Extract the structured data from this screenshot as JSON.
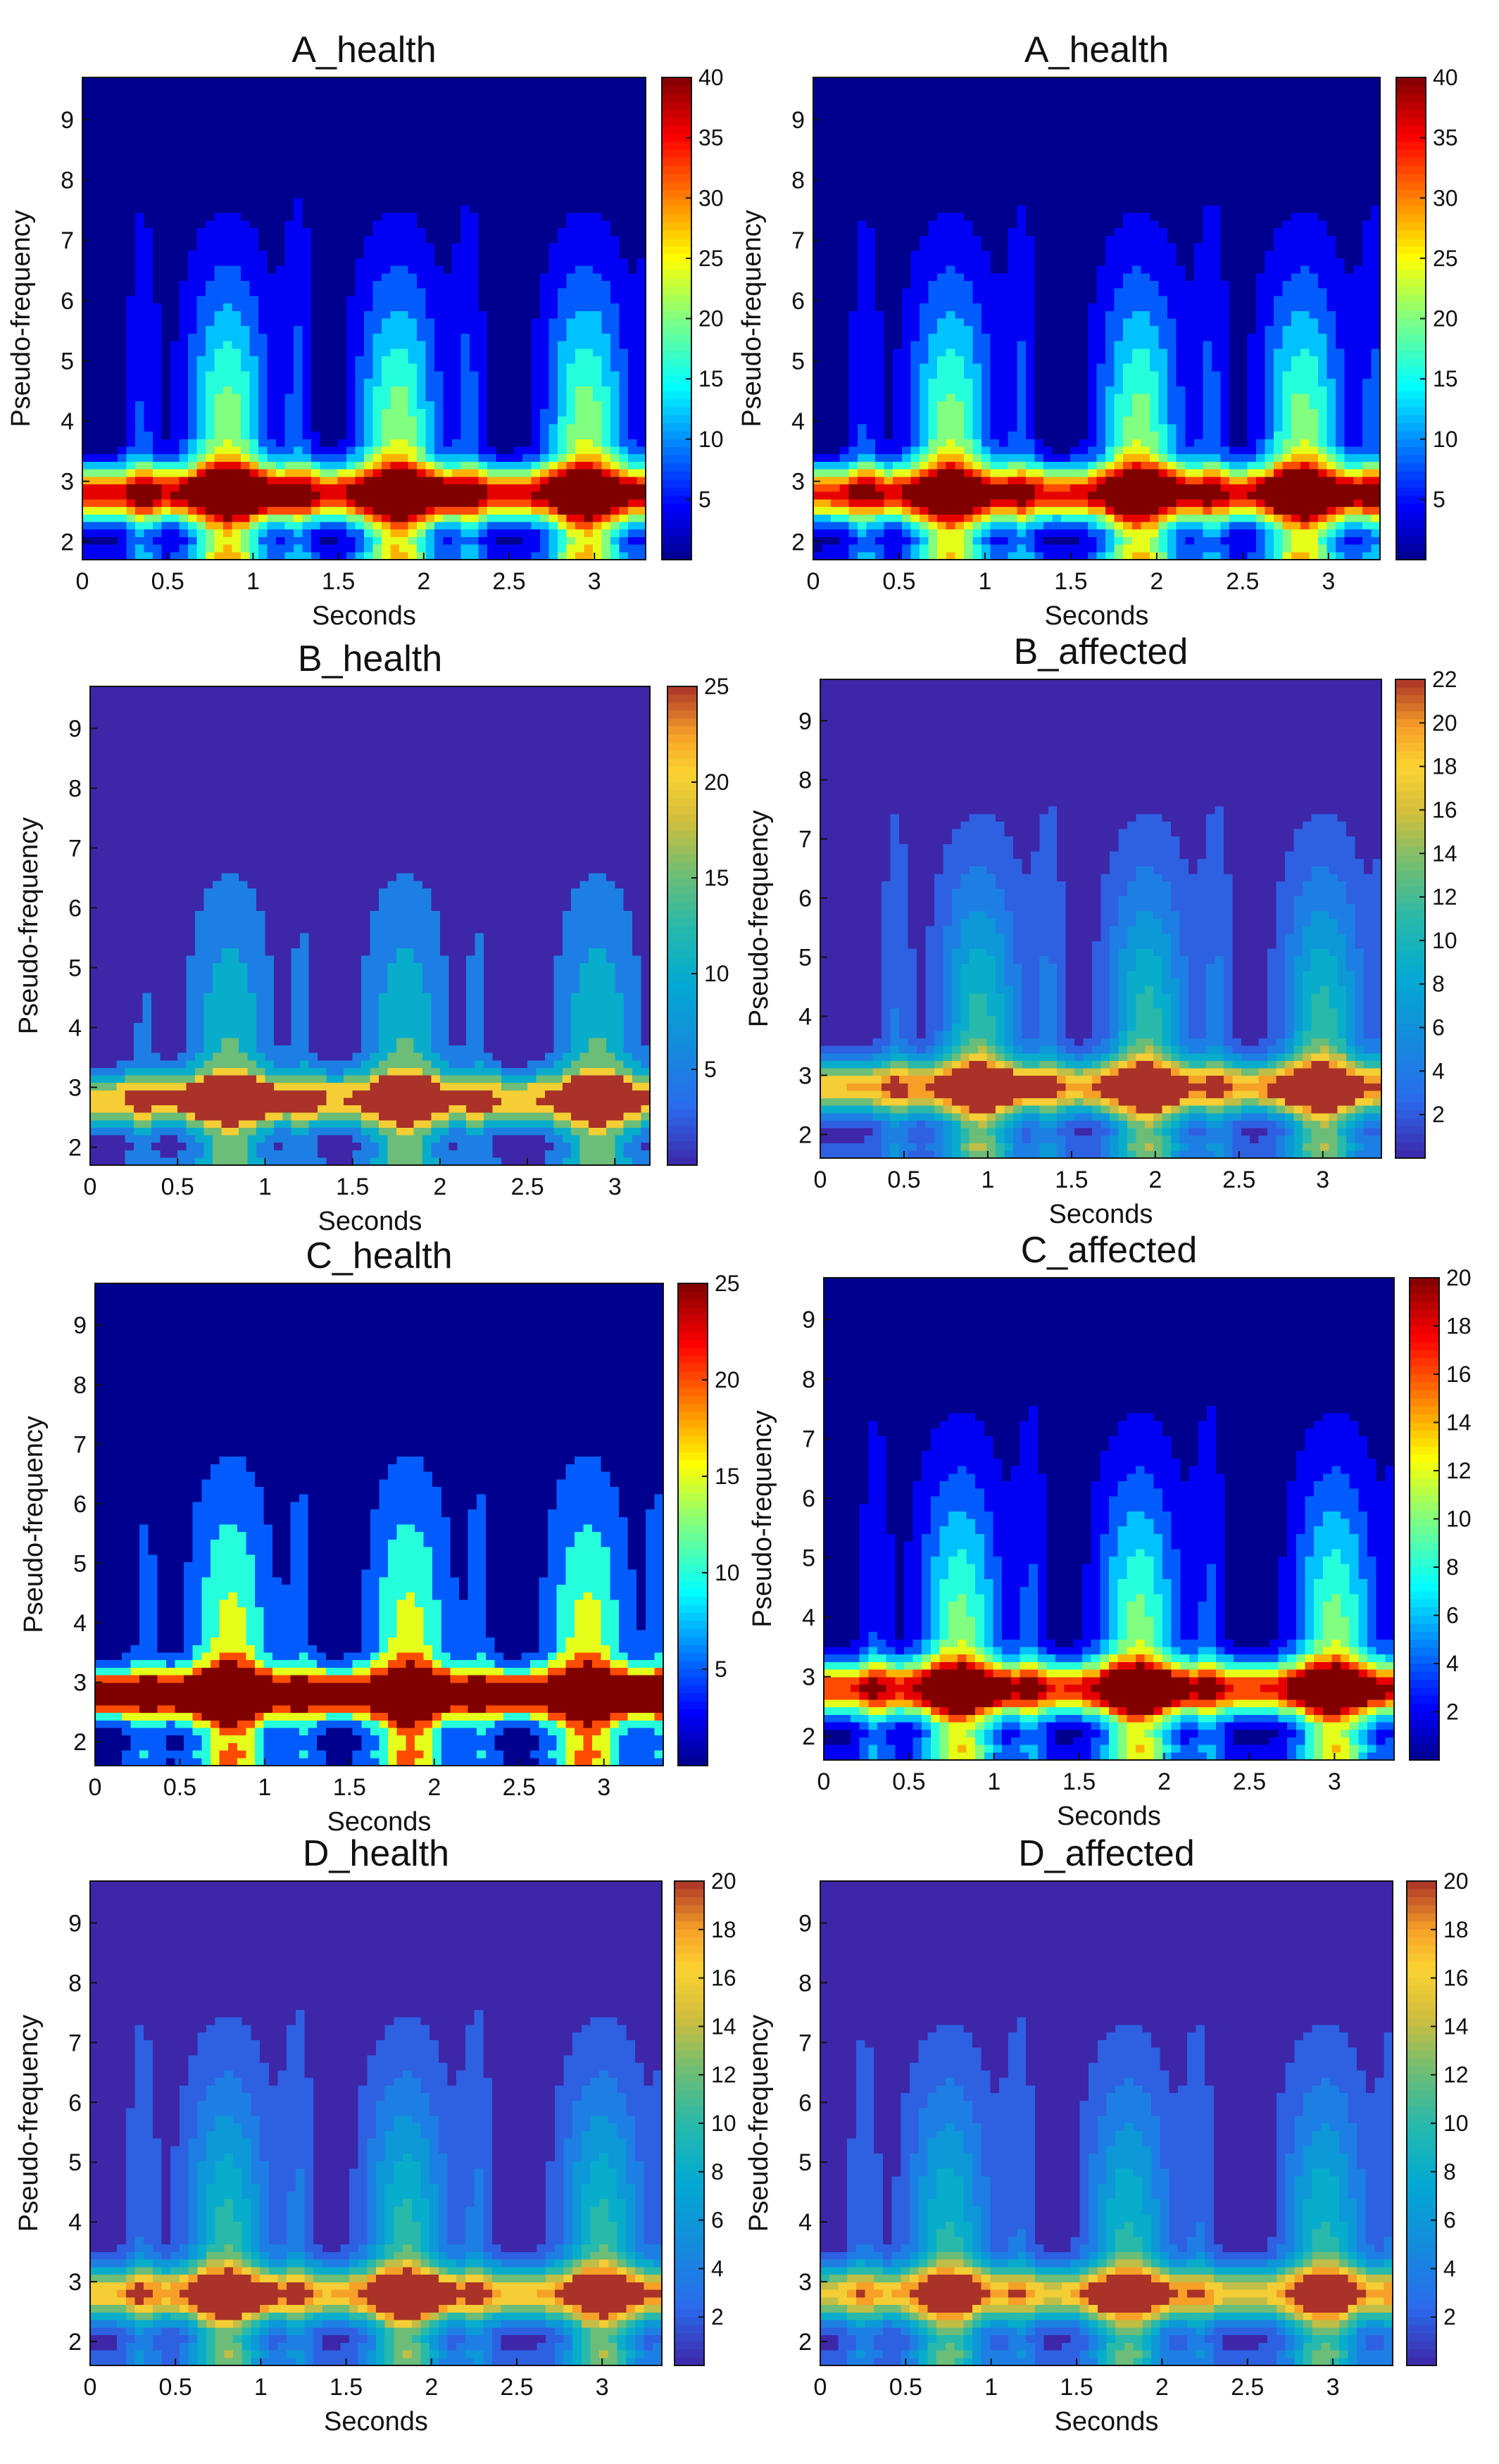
{
  "figure": {
    "description": "Eight wavelet scalograms (pseudo-frequency vs. seconds) arranged in a 4x2 grid"
  },
  "colors": {
    "background": "#ffffff",
    "axis": "#111111"
  },
  "chart_data": [
    {
      "id": "a1",
      "type": "heatmap",
      "title": "A_health",
      "xlabel": "Seconds",
      "ylabel": "Pseudo-frequency",
      "xlim": [
        0,
        3.3
      ],
      "ylim": [
        1.7,
        9.7
      ],
      "xticks": [
        "0",
        "0.5",
        "1",
        "1.5",
        "2",
        "2.5",
        "3"
      ],
      "yticks": [
        "2",
        "3",
        "4",
        "5",
        "6",
        "7",
        "8",
        "9"
      ],
      "colorbar": {
        "range": [
          0,
          40
        ],
        "ticks": [
          "5",
          "10",
          "15",
          "20",
          "25",
          "30",
          "35",
          "40"
        ]
      },
      "colormap": "jet",
      "levels": 11,
      "band_peak": 34,
      "peak_centers": [
        0.85,
        1.85,
        2.95
      ],
      "max_hotspots": [
        1.0,
        2.0
      ]
    },
    {
      "id": "a2",
      "type": "heatmap",
      "title": "A_health",
      "xlabel": "Seconds",
      "ylabel": "Pseudo-frequency",
      "xlim": [
        0,
        3.3
      ],
      "ylim": [
        1.7,
        9.7
      ],
      "xticks": [
        "0",
        "0.5",
        "1",
        "1.5",
        "2",
        "2.5",
        "3"
      ],
      "yticks": [
        "2",
        "3",
        "4",
        "5",
        "6",
        "7",
        "8",
        "9"
      ],
      "colorbar": {
        "range": [
          0,
          40
        ],
        "ticks": [
          "5",
          "10",
          "15",
          "20",
          "25",
          "30",
          "35",
          "40"
        ]
      },
      "colormap": "jet",
      "levels": 11,
      "band_peak": 33,
      "peak_centers": [
        0.8,
        1.9,
        2.85
      ],
      "max_hotspots": [
        2.9
      ]
    },
    {
      "id": "b1",
      "type": "heatmap",
      "title": "B_health",
      "xlabel": "Seconds",
      "ylabel": "Pseudo-frequency",
      "xlim": [
        0,
        3.2
      ],
      "ylim": [
        1.7,
        9.7
      ],
      "xticks": [
        "0",
        "0.5",
        "1",
        "1.5",
        "2",
        "2.5",
        "3"
      ],
      "yticks": [
        "2",
        "3",
        "4",
        "5",
        "6",
        "7",
        "8",
        "9"
      ],
      "colorbar": {
        "range": [
          0,
          25
        ],
        "ticks": [
          "5",
          "10",
          "15",
          "20",
          "25"
        ]
      },
      "colormap": "parula",
      "levels": 6,
      "band_peak": 20,
      "peak_centers": [
        0.8,
        1.8,
        2.9
      ],
      "max_hotspots": [
        0.8
      ]
    },
    {
      "id": "b2",
      "type": "heatmap",
      "title": "B_affected",
      "xlabel": "Seconds",
      "ylabel": "Pseudo-frequency",
      "xlim": [
        0,
        3.35
      ],
      "ylim": [
        1.6,
        9.7
      ],
      "xticks": [
        "0",
        "0.5",
        "1",
        "1.5",
        "2",
        "2.5",
        "3"
      ],
      "yticks": [
        "2",
        "3",
        "4",
        "5",
        "6",
        "7",
        "8",
        "9"
      ],
      "colorbar": {
        "range": [
          0,
          22
        ],
        "ticks": [
          "2",
          "4",
          "6",
          "8",
          "10",
          "12",
          "14",
          "16",
          "18",
          "20",
          "22"
        ]
      },
      "colormap": "parula",
      "levels": 11,
      "band_peak": 18,
      "peak_centers": [
        0.95,
        1.95,
        3.0
      ],
      "max_hotspots": [
        1.0,
        1.9,
        2.9
      ]
    },
    {
      "id": "c1",
      "type": "heatmap",
      "title": "C_health",
      "xlabel": "Seconds",
      "ylabel": "Pseudo-frequency",
      "xlim": [
        0,
        3.35
      ],
      "ylim": [
        1.6,
        9.7
      ],
      "xticks": [
        "0",
        "0.5",
        "1",
        "1.5",
        "2",
        "2.5",
        "3"
      ],
      "yticks": [
        "2",
        "3",
        "4",
        "5",
        "6",
        "7",
        "8",
        "9"
      ],
      "colorbar": {
        "range": [
          0,
          25
        ],
        "ticks": [
          "5",
          "10",
          "15",
          "20",
          "25"
        ]
      },
      "colormap": "jet",
      "levels": 6,
      "band_peak": 23,
      "peak_centers": [
        0.8,
        1.85,
        2.9
      ],
      "max_hotspots": [
        0.6,
        3.1
      ]
    },
    {
      "id": "c2",
      "type": "heatmap",
      "title": "C_affected",
      "xlabel": "Seconds",
      "ylabel": "Pseudo-frequency",
      "xlim": [
        0,
        3.35
      ],
      "ylim": [
        1.6,
        9.7
      ],
      "xticks": [
        "0",
        "0.5",
        "1",
        "1.5",
        "2",
        "2.5",
        "3"
      ],
      "yticks": [
        "2",
        "3",
        "4",
        "5",
        "6",
        "7",
        "8",
        "9"
      ],
      "colorbar": {
        "range": [
          0,
          20
        ],
        "ticks": [
          "2",
          "4",
          "6",
          "8",
          "10",
          "12",
          "14",
          "16",
          "18",
          "20"
        ]
      },
      "colormap": "jet",
      "levels": 11,
      "band_peak": 16,
      "peak_centers": [
        0.8,
        1.85,
        3.0
      ],
      "max_hotspots": [
        0.85,
        1.9,
        3.0
      ]
    },
    {
      "id": "d1",
      "type": "heatmap",
      "title": "D_health",
      "xlabel": "Seconds",
      "ylabel": "Pseudo-frequency",
      "xlim": [
        0,
        3.35
      ],
      "ylim": [
        1.6,
        9.7
      ],
      "xticks": [
        "0",
        "0.5",
        "1",
        "1.5",
        "2",
        "2.5",
        "3"
      ],
      "yticks": [
        "2",
        "3",
        "4",
        "5",
        "6",
        "7",
        "8",
        "9"
      ],
      "colorbar": {
        "range": [
          0,
          20
        ],
        "ticks": [
          "2",
          "4",
          "6",
          "8",
          "10",
          "12",
          "14",
          "16",
          "18",
          "20"
        ]
      },
      "colormap": "parula",
      "levels": 11,
      "band_peak": 16,
      "peak_centers": [
        0.8,
        1.85,
        3.0
      ],
      "max_hotspots": [
        0.85,
        1.9
      ]
    },
    {
      "id": "d2",
      "type": "heatmap",
      "title": "D_affected",
      "xlabel": "Seconds",
      "ylabel": "Pseudo-frequency",
      "xlim": [
        0,
        3.35
      ],
      "ylim": [
        1.6,
        9.7
      ],
      "xticks": [
        "0",
        "0.5",
        "1",
        "1.5",
        "2",
        "2.5",
        "3"
      ],
      "yticks": [
        "2",
        "3",
        "4",
        "5",
        "6",
        "7",
        "8",
        "9"
      ],
      "colorbar": {
        "range": [
          0,
          20
        ],
        "ticks": [
          "2",
          "4",
          "6",
          "8",
          "10",
          "12",
          "14",
          "16",
          "18",
          "20"
        ]
      },
      "colormap": "parula",
      "levels": 11,
      "band_peak": 15,
      "peak_centers": [
        0.75,
        1.8,
        2.95
      ],
      "max_hotspots": [
        1.8
      ]
    }
  ]
}
